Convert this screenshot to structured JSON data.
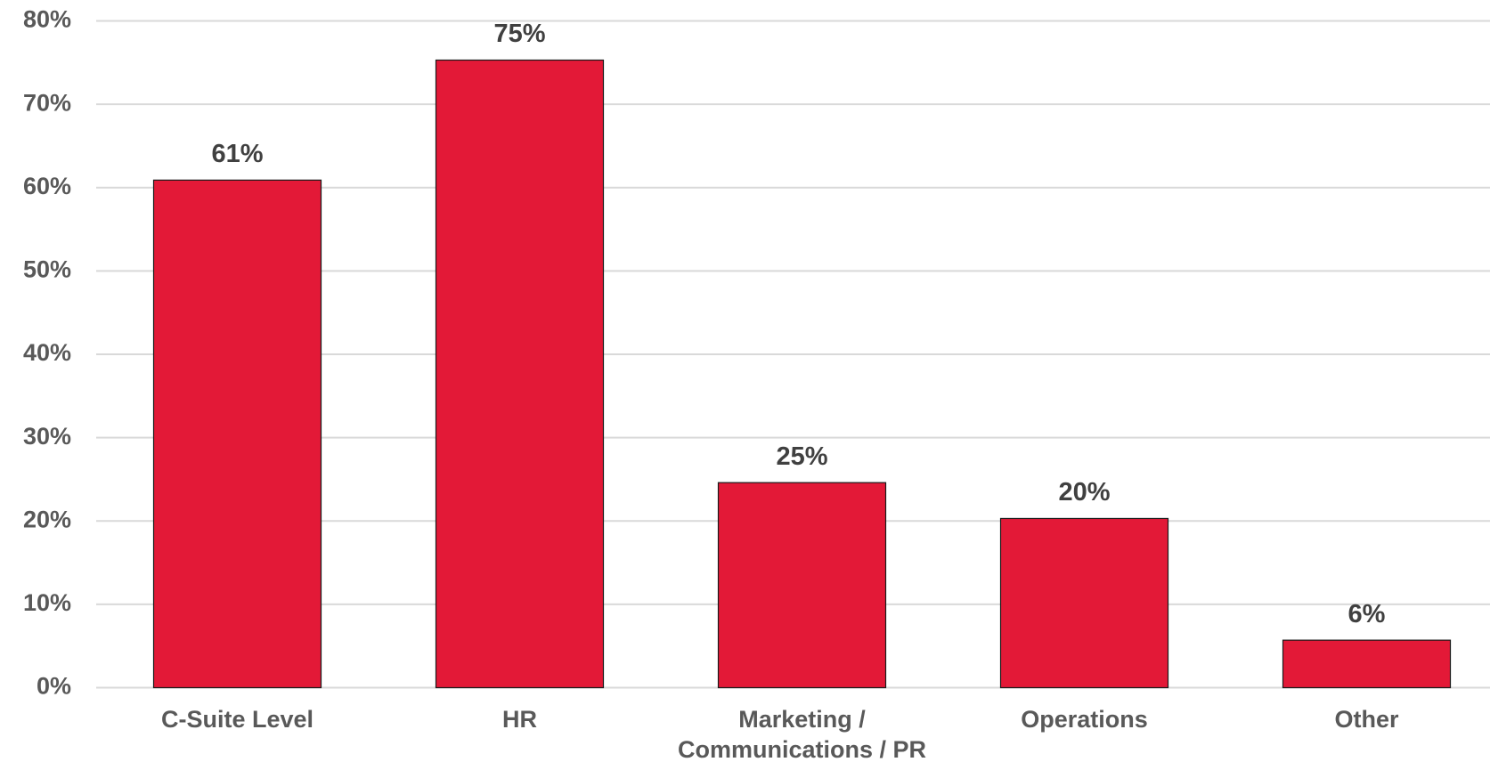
{
  "chart_data": {
    "type": "bar",
    "categories": [
      "C-Suite Level",
      "HR",
      "Marketing / Communications / PR",
      "Operations",
      "Other"
    ],
    "values": [
      60.9,
      75.3,
      24.6,
      20.3,
      5.7
    ],
    "value_labels": [
      "61%",
      "75%",
      "25%",
      "20%",
      "6%"
    ],
    "color": "#e31937",
    "ylim": [
      0,
      80
    ],
    "yticks": [
      {
        "value": 0,
        "label": "0%"
      },
      {
        "value": 10,
        "label": "10%"
      },
      {
        "value": 20,
        "label": "20%"
      },
      {
        "value": 30,
        "label": "30%"
      },
      {
        "value": 40,
        "label": "40%"
      },
      {
        "value": 50,
        "label": "50%"
      },
      {
        "value": 60,
        "label": "60%"
      },
      {
        "value": 70,
        "label": "70%"
      },
      {
        "value": 80,
        "label": "80%"
      }
    ],
    "grid": true
  }
}
